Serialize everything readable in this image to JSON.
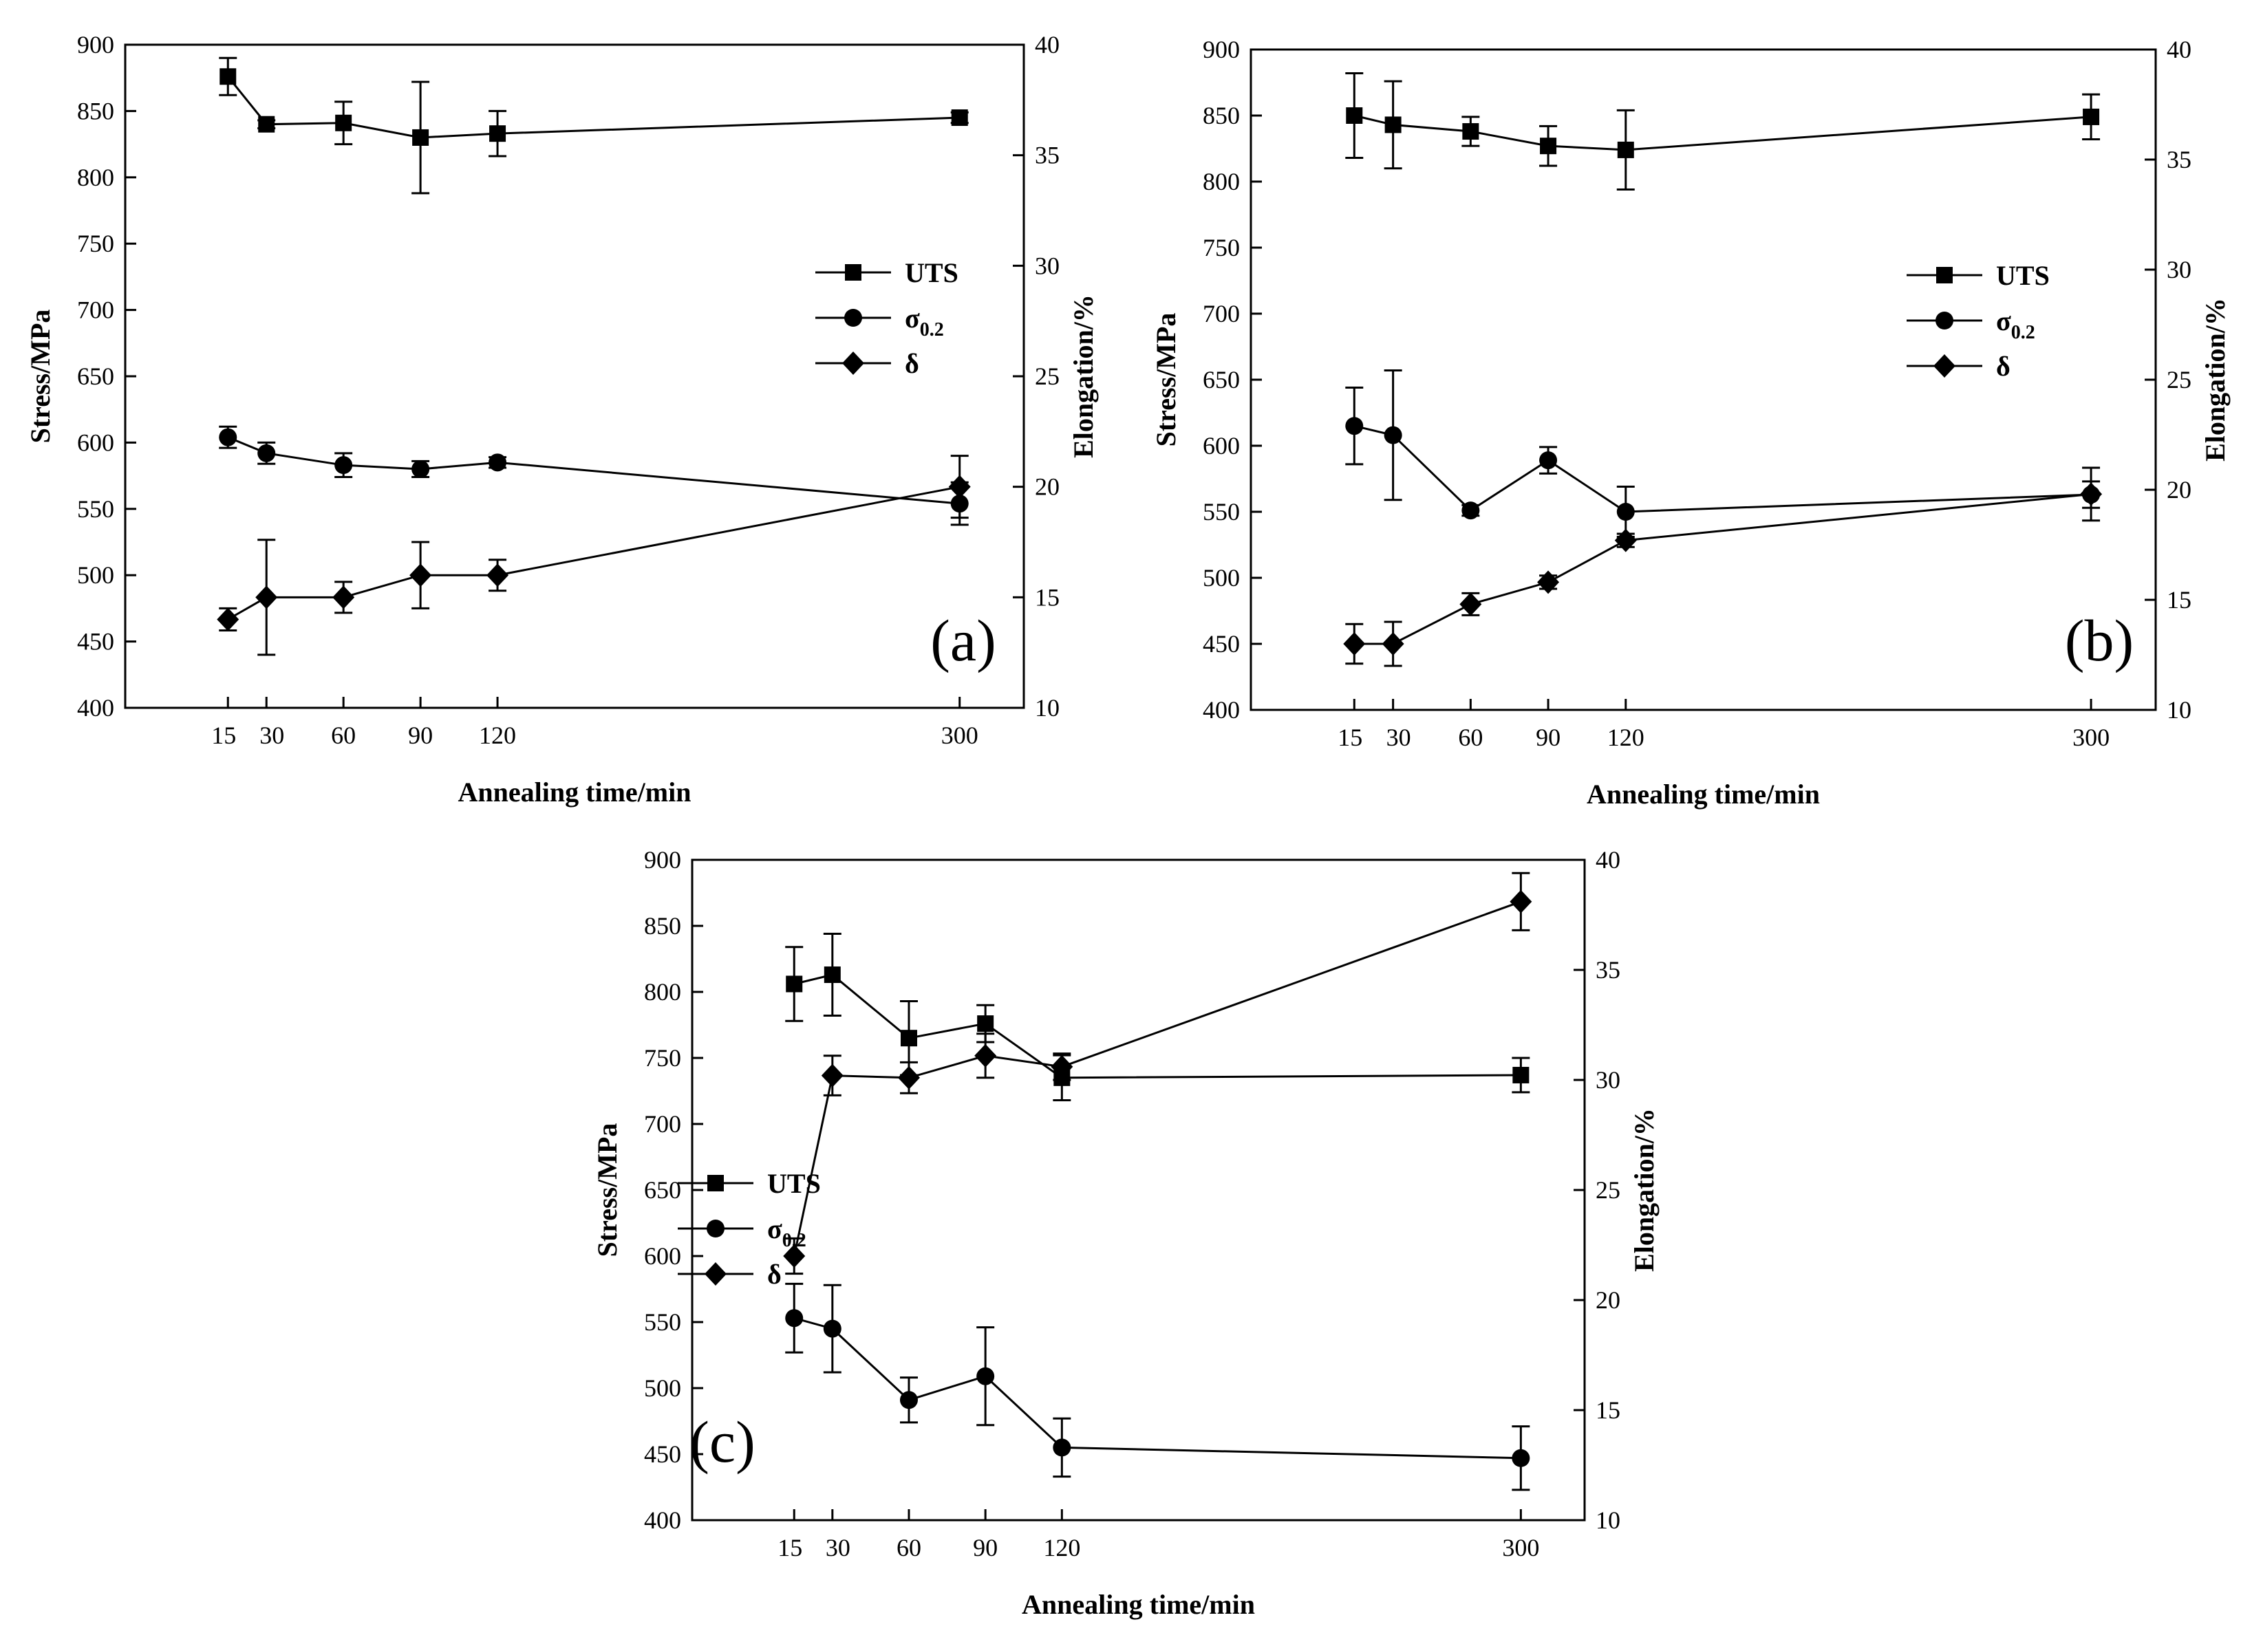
{
  "chart_data": [
    {
      "type": "line",
      "panel_label": "(a)",
      "xlabel": "Annealing time/min",
      "ylabel_left": "Stress/MPa",
      "ylabel_right": "Elongation/%",
      "x_ticks": [
        15,
        30,
        60,
        90,
        120,
        300
      ],
      "y_left_ticks": [
        400,
        450,
        500,
        550,
        600,
        650,
        700,
        750,
        800,
        850,
        900
      ],
      "y_right_ticks": [
        10,
        15,
        20,
        25,
        30,
        35,
        40
      ],
      "xlim": [
        -25,
        325
      ],
      "ylim_left": [
        400,
        900
      ],
      "ylim_right": [
        10,
        40
      ],
      "legend_position": "center-right",
      "legend": [
        "UTS",
        "σ0.2",
        "δ"
      ],
      "series": [
        {
          "name": "UTS",
          "axis": "left",
          "marker": "square",
          "x": [
            15,
            30,
            60,
            90,
            120,
            300
          ],
          "y": [
            876,
            840,
            841,
            830,
            833,
            845
          ],
          "err": [
            14,
            3,
            16,
            42,
            17,
            4
          ]
        },
        {
          "name": "σ0.2",
          "axis": "left",
          "marker": "circle",
          "x": [
            15,
            30,
            60,
            90,
            120,
            300
          ],
          "y": [
            604,
            592,
            583,
            580,
            585,
            554
          ],
          "err": [
            8,
            8,
            9,
            6,
            4,
            16
          ]
        },
        {
          "name": "δ",
          "axis": "right",
          "marker": "diamond",
          "x": [
            15,
            30,
            60,
            90,
            120,
            300
          ],
          "y": [
            14.0,
            15.0,
            15.0,
            16.0,
            16.0,
            20.0
          ],
          "err": [
            0.5,
            2.6,
            0.7,
            1.5,
            0.7,
            1.4
          ]
        }
      ]
    },
    {
      "type": "line",
      "panel_label": "(b)",
      "xlabel": "Annealing time/min",
      "ylabel_left": "Stress/MPa",
      "ylabel_right": "Elongation/%",
      "x_ticks": [
        15,
        30,
        60,
        90,
        120,
        300
      ],
      "y_left_ticks": [
        400,
        450,
        500,
        550,
        600,
        650,
        700,
        750,
        800,
        850,
        900
      ],
      "y_right_ticks": [
        10,
        15,
        20,
        25,
        30,
        35,
        40
      ],
      "xlim": [
        -25,
        325
      ],
      "ylim_left": [
        400,
        900
      ],
      "ylim_right": [
        10,
        40
      ],
      "legend_position": "center-right",
      "legend": [
        "UTS",
        "σ0.2",
        "δ"
      ],
      "series": [
        {
          "name": "UTS",
          "axis": "left",
          "marker": "square",
          "x": [
            15,
            30,
            60,
            90,
            120,
            300
          ],
          "y": [
            850,
            843,
            838,
            827,
            824,
            849
          ],
          "err": [
            32,
            33,
            11,
            15,
            30,
            17
          ]
        },
        {
          "name": "σ0.2",
          "axis": "left",
          "marker": "circle",
          "x": [
            15,
            30,
            60,
            90,
            120,
            300
          ],
          "y": [
            615,
            608,
            551,
            589,
            550,
            563
          ],
          "err": [
            29,
            49,
            4,
            10,
            19,
            10
          ]
        },
        {
          "name": "δ",
          "axis": "right",
          "marker": "diamond",
          "x": [
            15,
            30,
            60,
            90,
            120,
            300
          ],
          "y": [
            13.0,
            13.0,
            14.8,
            15.8,
            17.7,
            19.8
          ],
          "err": [
            0.9,
            1.0,
            0.5,
            0.3,
            0.3,
            1.2
          ]
        }
      ]
    },
    {
      "type": "line",
      "panel_label": "(c)",
      "xlabel": "Annealing time/min",
      "ylabel_left": "Stress/MPa",
      "ylabel_right": "Elongation/%",
      "x_ticks": [
        15,
        30,
        60,
        90,
        120,
        300
      ],
      "y_left_ticks": [
        400,
        450,
        500,
        550,
        600,
        650,
        700,
        750,
        800,
        850,
        900
      ],
      "y_right_ticks": [
        10,
        15,
        20,
        25,
        30,
        35,
        40
      ],
      "xlim": [
        -25,
        325
      ],
      "ylim_left": [
        400,
        900
      ],
      "ylim_right": [
        10,
        40
      ],
      "legend_position": "center-right",
      "legend": [
        "UTS",
        "σ0.2",
        "δ"
      ],
      "series": [
        {
          "name": "UTS",
          "axis": "left",
          "marker": "square",
          "x": [
            15,
            30,
            60,
            90,
            120,
            300
          ],
          "y": [
            806,
            813,
            765,
            776,
            735,
            737
          ],
          "err": [
            28,
            31,
            28,
            14,
            17,
            13
          ]
        },
        {
          "name": "σ0.2",
          "axis": "left",
          "marker": "circle",
          "x": [
            15,
            30,
            60,
            90,
            120,
            300
          ],
          "y": [
            553,
            545,
            491,
            509,
            455,
            447
          ],
          "err": [
            26,
            33,
            17,
            37,
            22,
            24
          ]
        },
        {
          "name": "δ",
          "axis": "right",
          "marker": "diamond",
          "x": [
            15,
            30,
            60,
            90,
            120,
            300
          ],
          "y": [
            22.0,
            30.2,
            30.1,
            31.1,
            30.6,
            38.1
          ],
          "err": [
            0.8,
            0.9,
            0.7,
            1.0,
            0.6,
            1.3
          ]
        }
      ]
    }
  ]
}
